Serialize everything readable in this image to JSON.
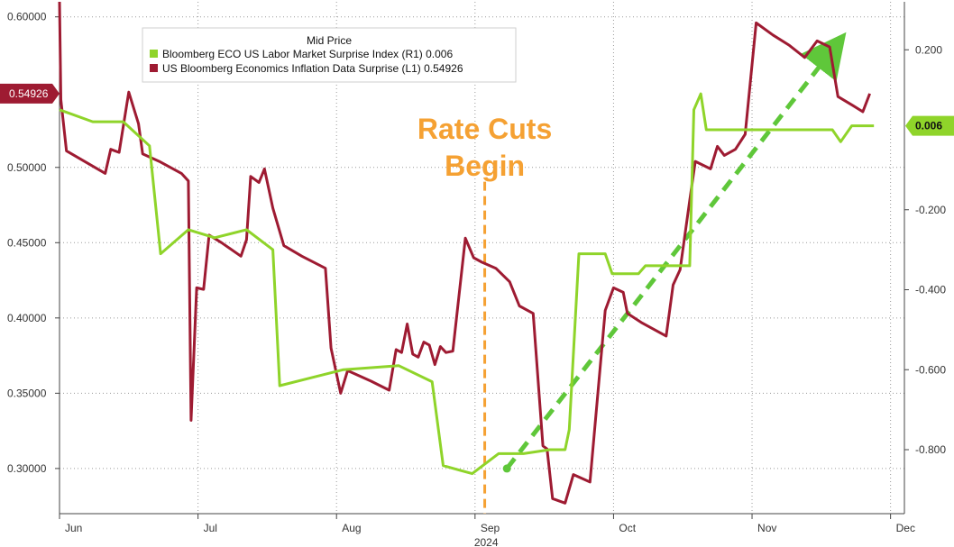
{
  "chart_data": {
    "type": "line",
    "legend": {
      "title": "Mid Price",
      "position": "top-left",
      "entries": [
        {
          "label": "Bloomberg ECO US Labor Market Surprise Index  (R1)  0.006",
          "color": "#8fd42a"
        },
        {
          "label": "US Bloomberg Economics Inflation Data Surprise  (L1) 0.54926",
          "color": "#9e1b32"
        }
      ]
    },
    "x_axis": {
      "domain": [
        0,
        6.1
      ],
      "ticks": [
        {
          "label": "Jun",
          "pos": 0.0
        },
        {
          "label": "Jul",
          "pos": 1.0
        },
        {
          "label": "Aug",
          "pos": 2.0
        },
        {
          "label": "Sep",
          "pos": 3.0
        },
        {
          "label": "Oct",
          "pos": 4.0
        },
        {
          "label": "Nov",
          "pos": 5.0
        },
        {
          "label": "Dec",
          "pos": 6.0
        }
      ],
      "year_label": "2024",
      "year_pos": 3.0
    },
    "left_axis": {
      "range": [
        0.27,
        0.61
      ],
      "ticks": [
        0.3,
        0.35,
        0.4,
        0.45,
        0.5,
        0.6
      ],
      "labels": [
        "0.30000",
        "0.35000",
        "0.40000",
        "0.45000",
        "0.50000",
        "0.60000"
      ]
    },
    "right_axis": {
      "range": [
        -0.96,
        0.32
      ],
      "ticks": [
        0.2,
        -0.2,
        -0.4,
        -0.6,
        -0.8
      ],
      "labels": [
        "0.200",
        "-0.200",
        "-0.400",
        "-0.600",
        "-0.800"
      ]
    },
    "grid": true,
    "series": [
      {
        "name": "US Bloomberg Economics Inflation Data Surprise",
        "axis": "left",
        "color": "#9e1b32",
        "last_value_label": "0.54926",
        "points": [
          [
            0.0,
            0.61
          ],
          [
            0.01,
            0.545
          ],
          [
            0.05,
            0.511
          ],
          [
            0.2,
            0.503
          ],
          [
            0.33,
            0.496
          ],
          [
            0.37,
            0.512
          ],
          [
            0.43,
            0.51
          ],
          [
            0.5,
            0.55
          ],
          [
            0.57,
            0.529
          ],
          [
            0.6,
            0.509
          ],
          [
            0.72,
            0.504
          ],
          [
            0.88,
            0.496
          ],
          [
            0.93,
            0.491
          ],
          [
            0.95,
            0.332
          ],
          [
            0.99,
            0.42
          ],
          [
            1.04,
            0.419
          ],
          [
            1.08,
            0.455
          ],
          [
            1.17,
            0.45
          ],
          [
            1.31,
            0.441
          ],
          [
            1.35,
            0.452
          ],
          [
            1.38,
            0.494
          ],
          [
            1.44,
            0.49
          ],
          [
            1.48,
            0.499
          ],
          [
            1.54,
            0.473
          ],
          [
            1.62,
            0.448
          ],
          [
            1.75,
            0.441
          ],
          [
            1.92,
            0.433
          ],
          [
            1.96,
            0.38
          ],
          [
            2.03,
            0.35
          ],
          [
            2.08,
            0.365
          ],
          [
            2.25,
            0.358
          ],
          [
            2.38,
            0.352
          ],
          [
            2.43,
            0.379
          ],
          [
            2.47,
            0.377
          ],
          [
            2.51,
            0.396
          ],
          [
            2.55,
            0.376
          ],
          [
            2.59,
            0.374
          ],
          [
            2.63,
            0.384
          ],
          [
            2.67,
            0.382
          ],
          [
            2.71,
            0.369
          ],
          [
            2.75,
            0.381
          ],
          [
            2.79,
            0.377
          ],
          [
            2.84,
            0.378
          ],
          [
            2.93,
            0.453
          ],
          [
            2.99,
            0.44
          ],
          [
            3.05,
            0.437
          ],
          [
            3.15,
            0.433
          ],
          [
            3.25,
            0.424
          ],
          [
            3.32,
            0.408
          ],
          [
            3.42,
            0.403
          ],
          [
            3.49,
            0.315
          ],
          [
            3.52,
            0.313
          ],
          [
            3.56,
            0.28
          ],
          [
            3.65,
            0.277
          ],
          [
            3.71,
            0.296
          ],
          [
            3.83,
            0.291
          ],
          [
            3.94,
            0.405
          ],
          [
            4.0,
            0.42
          ],
          [
            4.07,
            0.417
          ],
          [
            4.1,
            0.403
          ],
          [
            4.2,
            0.397
          ],
          [
            4.38,
            0.388
          ],
          [
            4.43,
            0.422
          ],
          [
            4.48,
            0.432
          ],
          [
            4.55,
            0.478
          ],
          [
            4.59,
            0.504
          ],
          [
            4.7,
            0.499
          ],
          [
            4.75,
            0.514
          ],
          [
            4.8,
            0.508
          ],
          [
            4.88,
            0.512
          ],
          [
            4.95,
            0.522
          ],
          [
            5.03,
            0.596
          ],
          [
            5.15,
            0.588
          ],
          [
            5.27,
            0.581
          ],
          [
            5.38,
            0.573
          ],
          [
            5.47,
            0.584
          ],
          [
            5.56,
            0.58
          ],
          [
            5.62,
            0.547
          ],
          [
            5.73,
            0.541
          ],
          [
            5.8,
            0.537
          ],
          [
            5.85,
            0.549
          ]
        ]
      },
      {
        "name": "Bloomberg ECO US Labor Market Surprise Index",
        "axis": "right",
        "color": "#8fd42a",
        "last_value_label": "0.006",
        "points": [
          [
            0.0,
            0.05
          ],
          [
            0.24,
            0.02
          ],
          [
            0.46,
            0.02
          ],
          [
            0.65,
            -0.04
          ],
          [
            0.73,
            -0.31
          ],
          [
            0.93,
            -0.25
          ],
          [
            1.12,
            -0.27
          ],
          [
            1.35,
            -0.25
          ],
          [
            1.54,
            -0.3
          ],
          [
            1.59,
            -0.64
          ],
          [
            1.82,
            -0.62
          ],
          [
            2.05,
            -0.6
          ],
          [
            2.45,
            -0.59
          ],
          [
            2.69,
            -0.63
          ],
          [
            2.77,
            -0.84
          ],
          [
            2.98,
            -0.86
          ],
          [
            3.17,
            -0.81
          ],
          [
            3.35,
            -0.81
          ],
          [
            3.54,
            -0.8
          ],
          [
            3.65,
            -0.8
          ],
          [
            3.68,
            -0.75
          ],
          [
            3.75,
            -0.31
          ],
          [
            3.94,
            -0.31
          ],
          [
            3.99,
            -0.36
          ],
          [
            4.18,
            -0.36
          ],
          [
            4.23,
            -0.34
          ],
          [
            4.44,
            -0.34
          ],
          [
            4.55,
            -0.34
          ],
          [
            4.58,
            0.05
          ],
          [
            4.63,
            0.09
          ],
          [
            4.67,
            0.0
          ],
          [
            4.8,
            0.0
          ],
          [
            4.98,
            0.0
          ],
          [
            5.05,
            0.0
          ],
          [
            5.1,
            0.0
          ],
          [
            5.35,
            0.0
          ],
          [
            5.58,
            0.0
          ],
          [
            5.64,
            -0.03
          ],
          [
            5.72,
            0.01
          ],
          [
            5.78,
            0.01
          ],
          [
            5.88,
            0.01
          ]
        ]
      }
    ],
    "annotations": [
      {
        "text_lines": [
          "Rate Cuts",
          "Begin"
        ],
        "color": "#f5a133",
        "x": 3.07,
        "from_y": 0.4905,
        "to_y": 0.27
      },
      {
        "type": "trend-arrow",
        "color": "#5fc73a",
        "from": [
          3.23,
          0.3
        ],
        "to": [
          5.58,
          0.578
        ]
      }
    ]
  }
}
